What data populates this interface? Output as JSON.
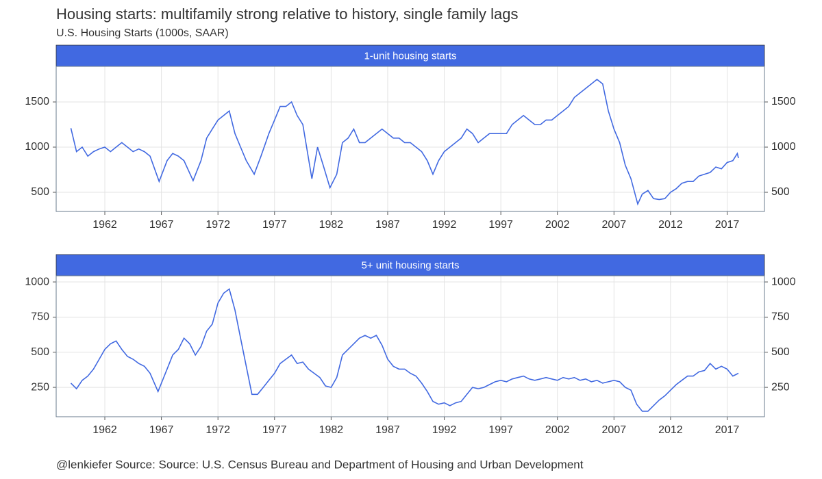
{
  "title": "Housing starts: multifamily strong relative to history, single family lags",
  "subtitle": "U.S. Housing Starts (1000s, SAAR)",
  "caption": "@lenkiefer Source: Source: U.S. Census Bureau and Department of Housing and Urban Development",
  "chart_data": [
    {
      "type": "line",
      "title": "1-unit housing starts",
      "color": "#4169e1",
      "grid": true,
      "xlim": [
        1957.7,
        2020.3
      ],
      "xticks": [
        1962,
        1967,
        1972,
        1977,
        1982,
        1987,
        1992,
        1997,
        2002,
        2007,
        2012,
        2017
      ],
      "ylim": [
        288,
        1894
      ],
      "yticks": [
        500,
        1000,
        1500
      ],
      "x": [
        1959,
        1959.5,
        1960,
        1960.5,
        1961,
        1961.5,
        1962,
        1962.5,
        1963,
        1963.5,
        1964,
        1964.5,
        1965,
        1965.5,
        1966,
        1966.8,
        1967.5,
        1968,
        1968.5,
        1969,
        1969.8,
        1970.5,
        1971,
        1971.5,
        1972,
        1972.5,
        1973,
        1973.5,
        1974,
        1974.5,
        1975.2,
        1975.8,
        1976.5,
        1977,
        1977.5,
        1978,
        1978.5,
        1979,
        1979.5,
        1980.3,
        1980.8,
        1981.3,
        1981.9,
        1982.5,
        1983,
        1983.5,
        1984,
        1984.5,
        1985,
        1985.5,
        1986,
        1986.5,
        1987,
        1987.5,
        1988,
        1988.5,
        1989,
        1989.5,
        1990,
        1990.5,
        1991,
        1991.5,
        1992,
        1992.5,
        1993,
        1993.5,
        1994,
        1994.5,
        1995,
        1995.5,
        1996,
        1996.5,
        1997,
        1997.5,
        1998,
        1998.5,
        1999,
        1999.5,
        2000,
        2000.5,
        2001,
        2001.5,
        2002,
        2002.5,
        2003,
        2003.5,
        2004,
        2004.5,
        2005,
        2005.5,
        2006,
        2006.5,
        2007,
        2007.5,
        2008,
        2008.5,
        2009.1,
        2009.5,
        2010,
        2010.5,
        2011,
        2011.5,
        2012,
        2012.5,
        2013,
        2013.5,
        2014,
        2014.5,
        2015,
        2015.5,
        2016,
        2016.5,
        2017,
        2017.5,
        2017.9,
        2018
      ],
      "values": [
        1210,
        950,
        1000,
        900,
        950,
        980,
        1000,
        950,
        1000,
        1050,
        1000,
        950,
        980,
        950,
        900,
        620,
        850,
        930,
        900,
        850,
        630,
        850,
        1100,
        1200,
        1300,
        1350,
        1400,
        1150,
        1000,
        850,
        700,
        900,
        1150,
        1300,
        1450,
        1450,
        1500,
        1350,
        1250,
        650,
        1000,
        800,
        550,
        700,
        1050,
        1100,
        1200,
        1050,
        1050,
        1100,
        1150,
        1200,
        1150,
        1100,
        1100,
        1050,
        1050,
        1000,
        950,
        850,
        700,
        850,
        950,
        1000,
        1050,
        1100,
        1200,
        1150,
        1050,
        1100,
        1150,
        1150,
        1150,
        1150,
        1250,
        1300,
        1350,
        1300,
        1250,
        1250,
        1300,
        1300,
        1350,
        1400,
        1450,
        1550,
        1600,
        1650,
        1700,
        1750,
        1700,
        1400,
        1200,
        1050,
        800,
        650,
        370,
        480,
        520,
        430,
        420,
        430,
        500,
        540,
        600,
        620,
        620,
        680,
        700,
        720,
        780,
        760,
        830,
        850,
        930,
        880
      ]
    },
    {
      "type": "line",
      "title": "5+ unit housing starts",
      "color": "#4169e1",
      "grid": true,
      "xlim": [
        1957.7,
        2020.3
      ],
      "xticks": [
        1962,
        1967,
        1972,
        1977,
        1982,
        1987,
        1992,
        1997,
        2002,
        2007,
        2012,
        2017
      ],
      "ylim": [
        41,
        1044
      ],
      "yticks": [
        250,
        500,
        750,
        1000
      ],
      "x": [
        1959,
        1959.5,
        1960,
        1960.5,
        1961,
        1961.5,
        1962,
        1962.5,
        1963,
        1963.5,
        1964,
        1964.5,
        1965,
        1965.5,
        1966,
        1966.7,
        1967.5,
        1968,
        1968.5,
        1969,
        1969.5,
        1970,
        1970.5,
        1971,
        1971.5,
        1972,
        1972.5,
        1973,
        1973.5,
        1974,
        1974.5,
        1975,
        1975.5,
        1976,
        1976.5,
        1977,
        1977.5,
        1978,
        1978.5,
        1979,
        1979.5,
        1980,
        1980.5,
        1981,
        1981.5,
        1982,
        1982.5,
        1983,
        1983.5,
        1984,
        1984.5,
        1985,
        1985.5,
        1986,
        1986.5,
        1987,
        1987.5,
        1988,
        1988.5,
        1989,
        1989.5,
        1990,
        1990.5,
        1991,
        1991.5,
        1992,
        1992.5,
        1993,
        1993.5,
        1994,
        1994.5,
        1995,
        1995.5,
        1996,
        1996.5,
        1997,
        1997.5,
        1998,
        1998.5,
        1999,
        1999.5,
        2000,
        2000.5,
        2001,
        2001.5,
        2002,
        2002.5,
        2003,
        2003.5,
        2004,
        2004.5,
        2005,
        2005.5,
        2006,
        2006.5,
        2007,
        2007.5,
        2008,
        2008.5,
        2009,
        2009.5,
        2010,
        2010.5,
        2011,
        2011.5,
        2012,
        2012.5,
        2013,
        2013.5,
        2014,
        2014.5,
        2015,
        2015.5,
        2016,
        2016.5,
        2017,
        2017.5,
        2018
      ],
      "values": [
        280,
        240,
        300,
        330,
        380,
        450,
        520,
        560,
        580,
        520,
        470,
        450,
        420,
        400,
        350,
        220,
        380,
        480,
        520,
        600,
        560,
        480,
        540,
        650,
        700,
        850,
        920,
        950,
        800,
        600,
        400,
        200,
        200,
        250,
        300,
        350,
        420,
        450,
        480,
        420,
        430,
        380,
        350,
        320,
        260,
        250,
        320,
        480,
        520,
        560,
        600,
        620,
        600,
        620,
        550,
        450,
        400,
        380,
        380,
        350,
        330,
        280,
        220,
        150,
        130,
        140,
        120,
        140,
        150,
        200,
        250,
        240,
        250,
        270,
        290,
        300,
        290,
        310,
        320,
        330,
        310,
        300,
        310,
        320,
        310,
        300,
        320,
        310,
        320,
        300,
        310,
        290,
        300,
        280,
        290,
        300,
        290,
        250,
        230,
        130,
        80,
        80,
        120,
        160,
        190,
        230,
        270,
        300,
        330,
        330,
        360,
        370,
        420,
        380,
        400,
        380,
        330,
        350
      ]
    }
  ]
}
